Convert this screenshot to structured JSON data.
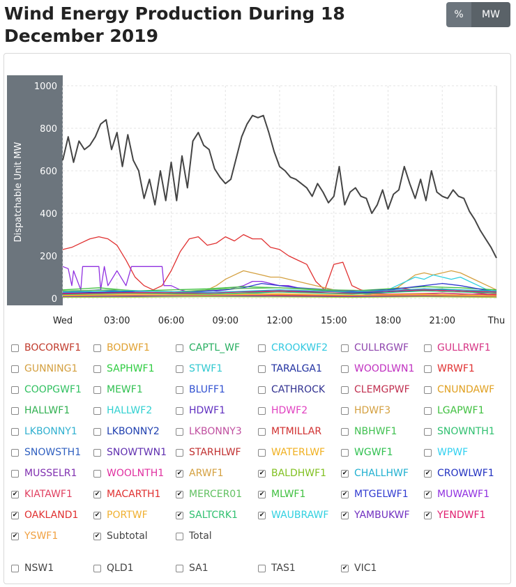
{
  "title": "Wind Energy Production During 18 December 2019",
  "toggle": {
    "percent_label": "%",
    "mw_label": "MW",
    "active": "MW"
  },
  "chart_data": {
    "type": "line",
    "xlabel": "",
    "ylabel": "Dispatchable Unit MW",
    "ylim": [
      0,
      1000
    ],
    "xlim": [
      0,
      24
    ],
    "yticks": [
      0,
      200,
      400,
      600,
      800,
      1000
    ],
    "xtick_labels": [
      "Wed",
      "03:00",
      "06:00",
      "09:00",
      "12:00",
      "15:00",
      "18:00",
      "21:00",
      "Thu"
    ],
    "grid": true,
    "series": [
      {
        "name": "Subtotal",
        "color": "#444444",
        "x": [
          0,
          0.3,
          0.6,
          0.9,
          1.2,
          1.5,
          1.8,
          2.1,
          2.4,
          2.7,
          3.0,
          3.3,
          3.6,
          3.9,
          4.2,
          4.5,
          4.8,
          5.1,
          5.4,
          5.7,
          6.0,
          6.3,
          6.6,
          6.9,
          7.2,
          7.5,
          7.8,
          8.1,
          8.4,
          8.7,
          9.0,
          9.3,
          9.6,
          9.9,
          10.2,
          10.5,
          10.8,
          11.1,
          11.4,
          11.7,
          12.0,
          12.3,
          12.6,
          12.9,
          13.2,
          13.5,
          13.8,
          14.1,
          14.4,
          14.7,
          15.0,
          15.3,
          15.6,
          15.9,
          16.2,
          16.5,
          16.8,
          17.1,
          17.4,
          17.7,
          18.0,
          18.3,
          18.6,
          18.9,
          19.2,
          19.5,
          19.8,
          20.1,
          20.4,
          20.7,
          21.0,
          21.3,
          21.6,
          21.9,
          22.2,
          22.5,
          22.8,
          23.1,
          23.4,
          23.7,
          24.0
        ],
        "y": [
          650,
          760,
          640,
          740,
          700,
          720,
          760,
          820,
          840,
          700,
          780,
          620,
          770,
          650,
          600,
          470,
          560,
          440,
          600,
          460,
          640,
          460,
          670,
          520,
          740,
          780,
          720,
          700,
          610,
          570,
          540,
          560,
          660,
          760,
          820,
          860,
          850,
          860,
          780,
          690,
          620,
          600,
          570,
          560,
          540,
          520,
          480,
          540,
          500,
          450,
          480,
          620,
          440,
          500,
          520,
          480,
          470,
          400,
          440,
          510,
          420,
          490,
          510,
          620,
          540,
          470,
          560,
          460,
          600,
          500,
          480,
          470,
          510,
          480,
          470,
          410,
          370,
          320,
          280,
          240,
          190
        ]
      },
      {
        "name": "MACARTH1",
        "color": "#e03030",
        "x": [
          0,
          0.5,
          1,
          1.5,
          2,
          2.5,
          3,
          3.5,
          4,
          4.5,
          5,
          5.5,
          6,
          6.5,
          7,
          7.5,
          8,
          8.5,
          9,
          9.5,
          10,
          10.5,
          11,
          11.5,
          12,
          12.5,
          13,
          13.5,
          14,
          14.5,
          15,
          15.5,
          16,
          16.5,
          17,
          17.5,
          18,
          18.5,
          19,
          19.5,
          20,
          20.5,
          21,
          21.5,
          22,
          22.5,
          23,
          23.5,
          24
        ],
        "y": [
          230,
          240,
          260,
          280,
          290,
          280,
          250,
          180,
          100,
          60,
          40,
          60,
          130,
          220,
          280,
          290,
          250,
          260,
          290,
          270,
          300,
          280,
          280,
          240,
          230,
          200,
          180,
          160,
          80,
          40,
          160,
          170,
          60,
          40,
          30,
          30,
          40,
          50,
          45,
          40,
          45,
          40,
          35,
          40,
          30,
          30,
          25,
          20,
          20
        ]
      },
      {
        "name": "MUWAWF1",
        "color": "#9030e0",
        "x": [
          0,
          0.3,
          0.5,
          0.6,
          1.0,
          1.1,
          2.0,
          2.1,
          2.3,
          2.5,
          3.0,
          3.5,
          3.8,
          4.0,
          5.5,
          5.6,
          6.0,
          6.5,
          7.0,
          7.5,
          8.0,
          8.5,
          9.0,
          9.5,
          10.0,
          10.5,
          11.0,
          11.5,
          12.0,
          12.5,
          13.0,
          14.0,
          15.0,
          16.0,
          17.0,
          18.0,
          19.0,
          20.0,
          21.0,
          22.0,
          23.0,
          24.0
        ],
        "y": [
          150,
          140,
          60,
          130,
          40,
          150,
          150,
          40,
          150,
          60,
          130,
          60,
          150,
          150,
          150,
          60,
          60,
          40,
          30,
          35,
          40,
          35,
          40,
          50,
          60,
          80,
          80,
          70,
          60,
          60,
          50,
          40,
          35,
          30,
          25,
          20,
          20,
          20,
          25,
          20,
          20,
          15
        ]
      },
      {
        "name": "ARWF1",
        "color": "#d4a040",
        "x": [
          0,
          1,
          2,
          3,
          4,
          5,
          6,
          7,
          8,
          8.5,
          9,
          9.5,
          10,
          10.5,
          11,
          11.5,
          12,
          12.5,
          13,
          14,
          15,
          16,
          17,
          18,
          18.5,
          19,
          19.5,
          20,
          20.5,
          21,
          21.5,
          22,
          22.5,
          23,
          23.5,
          24
        ],
        "y": [
          20,
          20,
          25,
          30,
          25,
          20,
          25,
          30,
          40,
          60,
          90,
          110,
          130,
          120,
          110,
          100,
          100,
          90,
          80,
          60,
          40,
          30,
          20,
          30,
          50,
          80,
          110,
          120,
          110,
          120,
          130,
          120,
          100,
          80,
          60,
          40
        ]
      },
      {
        "name": "WAUBRAWF",
        "color": "#30d0e0",
        "x": [
          0,
          2,
          4,
          6,
          8,
          10,
          12,
          14,
          16,
          17,
          18,
          18.5,
          19,
          19.5,
          20,
          20.5,
          21,
          21.5,
          22,
          22.5,
          23,
          23.5,
          24
        ],
        "y": [
          10,
          15,
          10,
          15,
          20,
          25,
          20,
          15,
          10,
          20,
          40,
          60,
          80,
          100,
          90,
          110,
          100,
          90,
          100,
          80,
          60,
          40,
          30
        ]
      },
      {
        "name": "MLWF1",
        "color": "#40c040",
        "x": [
          0,
          2,
          4,
          6,
          8,
          10,
          12,
          14,
          16,
          18,
          20,
          22,
          24
        ],
        "y": [
          40,
          50,
          35,
          40,
          45,
          55,
          50,
          40,
          35,
          45,
          55,
          50,
          40
        ]
      },
      {
        "name": "MTGELWF1",
        "color": "#303ad0",
        "x": [
          0,
          2,
          4,
          6,
          8,
          9,
          10,
          11,
          12,
          13,
          14,
          16,
          18,
          20,
          21,
          22,
          23,
          24
        ],
        "y": [
          30,
          40,
          30,
          25,
          35,
          40,
          50,
          70,
          60,
          50,
          45,
          35,
          40,
          60,
          70,
          60,
          45,
          30
        ]
      },
      {
        "name": "CROWLWF1",
        "color": "#2030c0",
        "x": [
          0,
          3,
          6,
          9,
          12,
          15,
          18,
          21,
          24
        ],
        "y": [
          25,
          30,
          25,
          30,
          35,
          25,
          30,
          40,
          25
        ]
      },
      {
        "name": "KIATAWF1",
        "color": "#e04060",
        "x": [
          0,
          3,
          6,
          9,
          12,
          15,
          18,
          21,
          24
        ],
        "y": [
          20,
          25,
          20,
          30,
          30,
          25,
          20,
          25,
          15
        ]
      },
      {
        "name": "MERCER01",
        "color": "#60c060",
        "x": [
          0,
          3,
          6,
          9,
          12,
          15,
          18,
          21,
          24
        ],
        "y": [
          35,
          40,
          30,
          45,
          50,
          40,
          35,
          45,
          30
        ]
      },
      {
        "name": "OAKLAND1",
        "color": "#e03030",
        "x": [
          0,
          4,
          8,
          12,
          16,
          20,
          24
        ],
        "y": [
          10,
          12,
          15,
          14,
          10,
          12,
          8
        ]
      },
      {
        "name": "PORTWF",
        "color": "#f0b030",
        "x": [
          0,
          4,
          8,
          12,
          16,
          20,
          24
        ],
        "y": [
          15,
          20,
          18,
          22,
          15,
          20,
          12
        ]
      },
      {
        "name": "SALTCRK1",
        "color": "#30c070",
        "x": [
          0,
          4,
          8,
          12,
          16,
          20,
          24
        ],
        "y": [
          18,
          25,
          20,
          30,
          20,
          35,
          25
        ]
      },
      {
        "name": "YAMBUKWF",
        "color": "#7030c0",
        "x": [
          0,
          4,
          8,
          12,
          16,
          20,
          24
        ],
        "y": [
          8,
          10,
          12,
          10,
          8,
          10,
          6
        ]
      },
      {
        "name": "YENDWF1",
        "color": "#e02070",
        "x": [
          0,
          4,
          8,
          12,
          16,
          20,
          24
        ],
        "y": [
          22,
          28,
          25,
          35,
          30,
          40,
          30
        ]
      },
      {
        "name": "YSWF1",
        "color": "#f0a040",
        "x": [
          0,
          4,
          8,
          12,
          16,
          20,
          24
        ],
        "y": [
          12,
          15,
          14,
          18,
          14,
          16,
          10
        ]
      },
      {
        "name": "BALDHWF1",
        "color": "#a0d030",
        "x": [
          0,
          4,
          8,
          12,
          16,
          20,
          24
        ],
        "y": [
          5,
          6,
          8,
          7,
          5,
          8,
          5
        ]
      },
      {
        "name": "CHALLHWF",
        "color": "#20b0d0",
        "x": [
          0,
          4,
          8,
          12,
          16,
          20,
          24
        ],
        "y": [
          30,
          35,
          28,
          40,
          30,
          45,
          35
        ]
      }
    ]
  },
  "legend": {
    "rows": [
      [
        {
          "label": "BOCORWF1",
          "color": "#c0392b",
          "checked": false
        },
        {
          "label": "BODWF1",
          "color": "#e0a030",
          "checked": false
        },
        {
          "label": "CAPTL_WF",
          "color": "#27ae60",
          "checked": false
        },
        {
          "label": "CROOKWF2",
          "color": "#30c8e0",
          "checked": false
        },
        {
          "label": "CULLRGWF",
          "color": "#8e44ad",
          "checked": false
        },
        {
          "label": "GULLRWF1",
          "color": "#d63384",
          "checked": false
        }
      ],
      [
        {
          "label": "GUNNING1",
          "color": "#d4a040",
          "checked": false
        },
        {
          "label": "SAPHWF1",
          "color": "#2ecc40",
          "checked": false
        },
        {
          "label": "STWF1",
          "color": "#30c8d0",
          "checked": false
        },
        {
          "label": "TARALGA1",
          "color": "#2030a0",
          "checked": false
        },
        {
          "label": "WOODLWN1",
          "color": "#c030c0",
          "checked": false
        },
        {
          "label": "WRWF1",
          "color": "#e03030",
          "checked": false
        }
      ],
      [
        {
          "label": "COOPGWF1",
          "color": "#30c060",
          "checked": false
        },
        {
          "label": "MEWF1",
          "color": "#30c050",
          "checked": false
        },
        {
          "label": "BLUFF1",
          "color": "#3050d0",
          "checked": false
        },
        {
          "label": "CATHROCK",
          "color": "#303090",
          "checked": false
        },
        {
          "label": "CLEMGPWF",
          "color": "#c03050",
          "checked": false
        },
        {
          "label": "CNUNDAWF",
          "color": "#e0a020",
          "checked": false
        }
      ],
      [
        {
          "label": "HALLWF1",
          "color": "#30b050",
          "checked": false
        },
        {
          "label": "HALLWF2",
          "color": "#30d0d0",
          "checked": false
        },
        {
          "label": "HDWF1",
          "color": "#6030c0",
          "checked": false
        },
        {
          "label": "HDWF2",
          "color": "#e040c0",
          "checked": false
        },
        {
          "label": "HDWF3",
          "color": "#d4a040",
          "checked": false
        },
        {
          "label": "LGAPWF1",
          "color": "#40c040",
          "checked": false
        }
      ],
      [
        {
          "label": "LKBONNY1",
          "color": "#30b0d0",
          "checked": false
        },
        {
          "label": "LKBONNY2",
          "color": "#2040b0",
          "checked": false
        },
        {
          "label": "LKBONNY3",
          "color": "#c050a0",
          "checked": false
        },
        {
          "label": "MTMILLAR",
          "color": "#d03030",
          "checked": false
        },
        {
          "label": "NBHWF1",
          "color": "#40c050",
          "checked": false
        },
        {
          "label": "SNOWNTH1",
          "color": "#30c070",
          "checked": false
        }
      ],
      [
        {
          "label": "SNOWSTH1",
          "color": "#3060c0",
          "checked": false
        },
        {
          "label": "SNOWTWN1",
          "color": "#6030b0",
          "checked": false
        },
        {
          "label": "STARHLWF",
          "color": "#c03030",
          "checked": false
        },
        {
          "label": "WATERLWF",
          "color": "#f0b020",
          "checked": false
        },
        {
          "label": "WGWF1",
          "color": "#30c050",
          "checked": false
        },
        {
          "label": "WPWF",
          "color": "#30d0f0",
          "checked": false
        }
      ],
      [
        {
          "label": "MUSSELR1",
          "color": "#8030b0",
          "checked": false
        },
        {
          "label": "WOOLNTH1",
          "color": "#e030a0",
          "checked": false
        },
        {
          "label": "ARWF1",
          "color": "#d4a040",
          "checked": true
        },
        {
          "label": "BALDHWF1",
          "color": "#80c020",
          "checked": true
        },
        {
          "label": "CHALLHWF",
          "color": "#20b0d0",
          "checked": true
        },
        {
          "label": "CROWLWF1",
          "color": "#2030c0",
          "checked": true
        }
      ],
      [
        {
          "label": "KIATAWF1",
          "color": "#e04060",
          "checked": true
        },
        {
          "label": "MACARTH1",
          "color": "#e03030",
          "checked": true
        },
        {
          "label": "MERCER01",
          "color": "#60c060",
          "checked": true
        },
        {
          "label": "MLWF1",
          "color": "#40c040",
          "checked": true
        },
        {
          "label": "MTGELWF1",
          "color": "#303ad0",
          "checked": true
        },
        {
          "label": "MUWAWF1",
          "color": "#9030e0",
          "checked": true
        }
      ],
      [
        {
          "label": "OAKLAND1",
          "color": "#e03030",
          "checked": true
        },
        {
          "label": "PORTWF",
          "color": "#f0b030",
          "checked": true
        },
        {
          "label": "SALTCRK1",
          "color": "#30c070",
          "checked": true
        },
        {
          "label": "WAUBRAWF",
          "color": "#30d0e0",
          "checked": true
        },
        {
          "label": "YAMBUKWF",
          "color": "#7030c0",
          "checked": true
        },
        {
          "label": "YENDWF1",
          "color": "#e02070",
          "checked": true
        }
      ],
      [
        {
          "label": "YSWF1",
          "color": "#f0a040",
          "checked": true
        },
        {
          "label": "Subtotal",
          "color": "#444444",
          "checked": true
        },
        {
          "label": "Total",
          "color": "#444444",
          "checked": false
        }
      ]
    ],
    "regions": [
      {
        "label": "NSW1",
        "color": "#444444",
        "checked": false
      },
      {
        "label": "QLD1",
        "color": "#444444",
        "checked": false
      },
      {
        "label": "SA1",
        "color": "#444444",
        "checked": false
      },
      {
        "label": "TAS1",
        "color": "#444444",
        "checked": false
      },
      {
        "label": "VIC1",
        "color": "#444444",
        "checked": true
      }
    ]
  }
}
